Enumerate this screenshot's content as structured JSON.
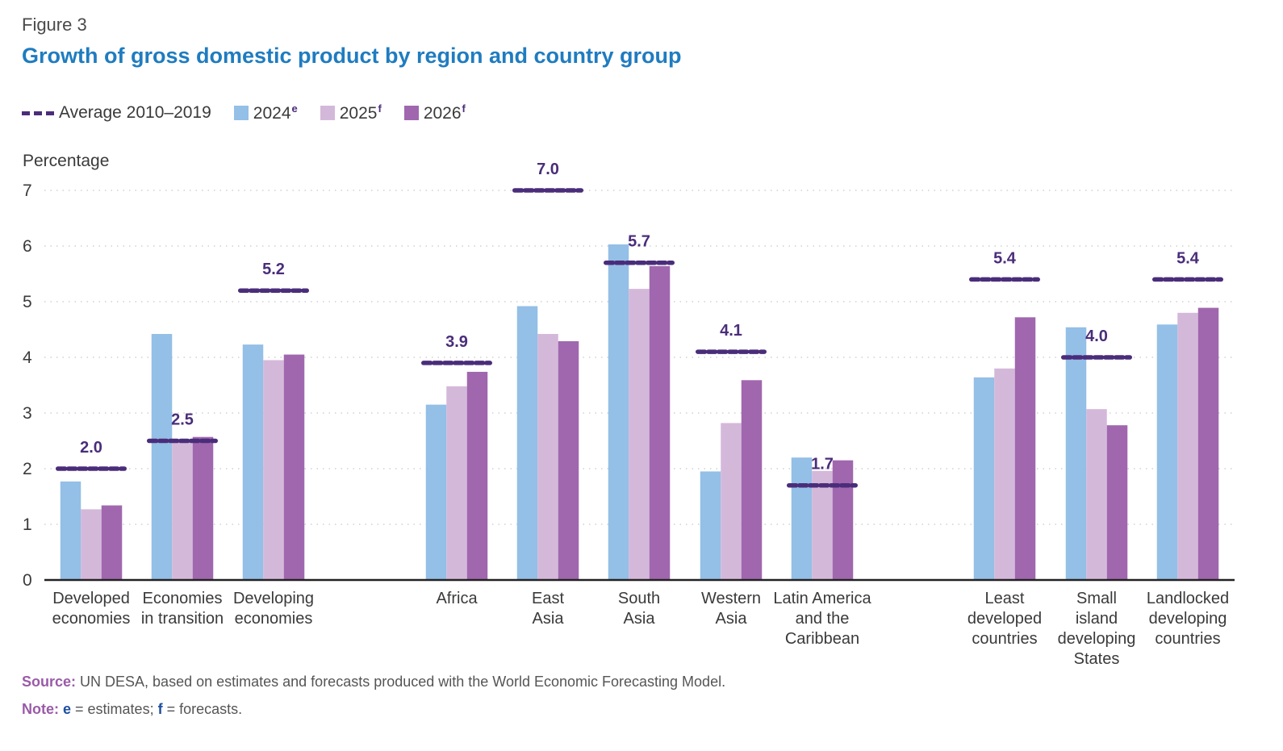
{
  "figure_label": "Figure 3",
  "title": "Growth of gross domestic product by region and country group",
  "legend": {
    "avg_label": "Average 2010–2019",
    "items": [
      {
        "label": "2024",
        "sup": "e",
        "color": "#94bfe6"
      },
      {
        "label": "2025",
        "sup": "f",
        "color": "#d4b8da"
      },
      {
        "label": "2026",
        "sup": "f",
        "color": "#a067ae"
      }
    ]
  },
  "source": {
    "label": "Source:",
    "text": " UN DESA, based on estimates and forecasts produced with the World Economic Forecasting Model."
  },
  "note": {
    "label": "Note:",
    "e": "e",
    "e_text": " = estimates; ",
    "f": "f",
    "f_text": " = forecasts."
  },
  "chart_data": {
    "type": "bar",
    "ylabel": "Percentage",
    "ylim": [
      0,
      7
    ],
    "yticks": [
      "0",
      "1",
      "2",
      "3",
      "4",
      "5",
      "6",
      "7"
    ],
    "grid": "horizontal dotted",
    "legend_position": "top-left",
    "avg_color": "#4a2d7a",
    "categories": [
      [
        "Developed",
        "economies"
      ],
      [
        "Economies",
        "in transition"
      ],
      [
        "Developing",
        "economies"
      ],
      [
        "Africa"
      ],
      [
        "East",
        "Asia"
      ],
      [
        "South",
        "Asia"
      ],
      [
        "Western",
        "Asia"
      ],
      [
        "Latin America",
        "and the",
        "Caribbean"
      ],
      [
        "Least",
        "developed",
        "countries"
      ],
      [
        "Small",
        "island",
        "developing",
        "States"
      ],
      [
        "Landlocked",
        "developing",
        "countries"
      ]
    ],
    "series": [
      {
        "name": "2024",
        "color": "#94bfe6",
        "values": [
          1.77,
          4.42,
          4.23,
          3.15,
          4.92,
          6.03,
          1.95,
          2.2,
          3.64,
          4.54,
          4.59
        ]
      },
      {
        "name": "2025",
        "color": "#d4b8da",
        "values": [
          1.27,
          2.52,
          3.95,
          3.48,
          4.42,
          5.23,
          2.82,
          1.96,
          3.8,
          3.07,
          4.8
        ]
      },
      {
        "name": "2026",
        "color": "#a067ae",
        "values": [
          1.34,
          2.57,
          4.05,
          3.74,
          4.29,
          5.64,
          3.59,
          2.15,
          4.72,
          2.78,
          4.89
        ]
      }
    ],
    "averages": {
      "name": "Average 2010–2019",
      "values": [
        2.0,
        2.5,
        5.2,
        3.9,
        7.0,
        5.7,
        4.1,
        1.7,
        5.4,
        4.0,
        5.4
      ],
      "labels": [
        "2.0",
        "2.5",
        "5.2",
        "3.9",
        "7.0",
        "5.7",
        "4.1",
        "1.7",
        "5.4",
        "4.0",
        "5.4"
      ]
    }
  }
}
